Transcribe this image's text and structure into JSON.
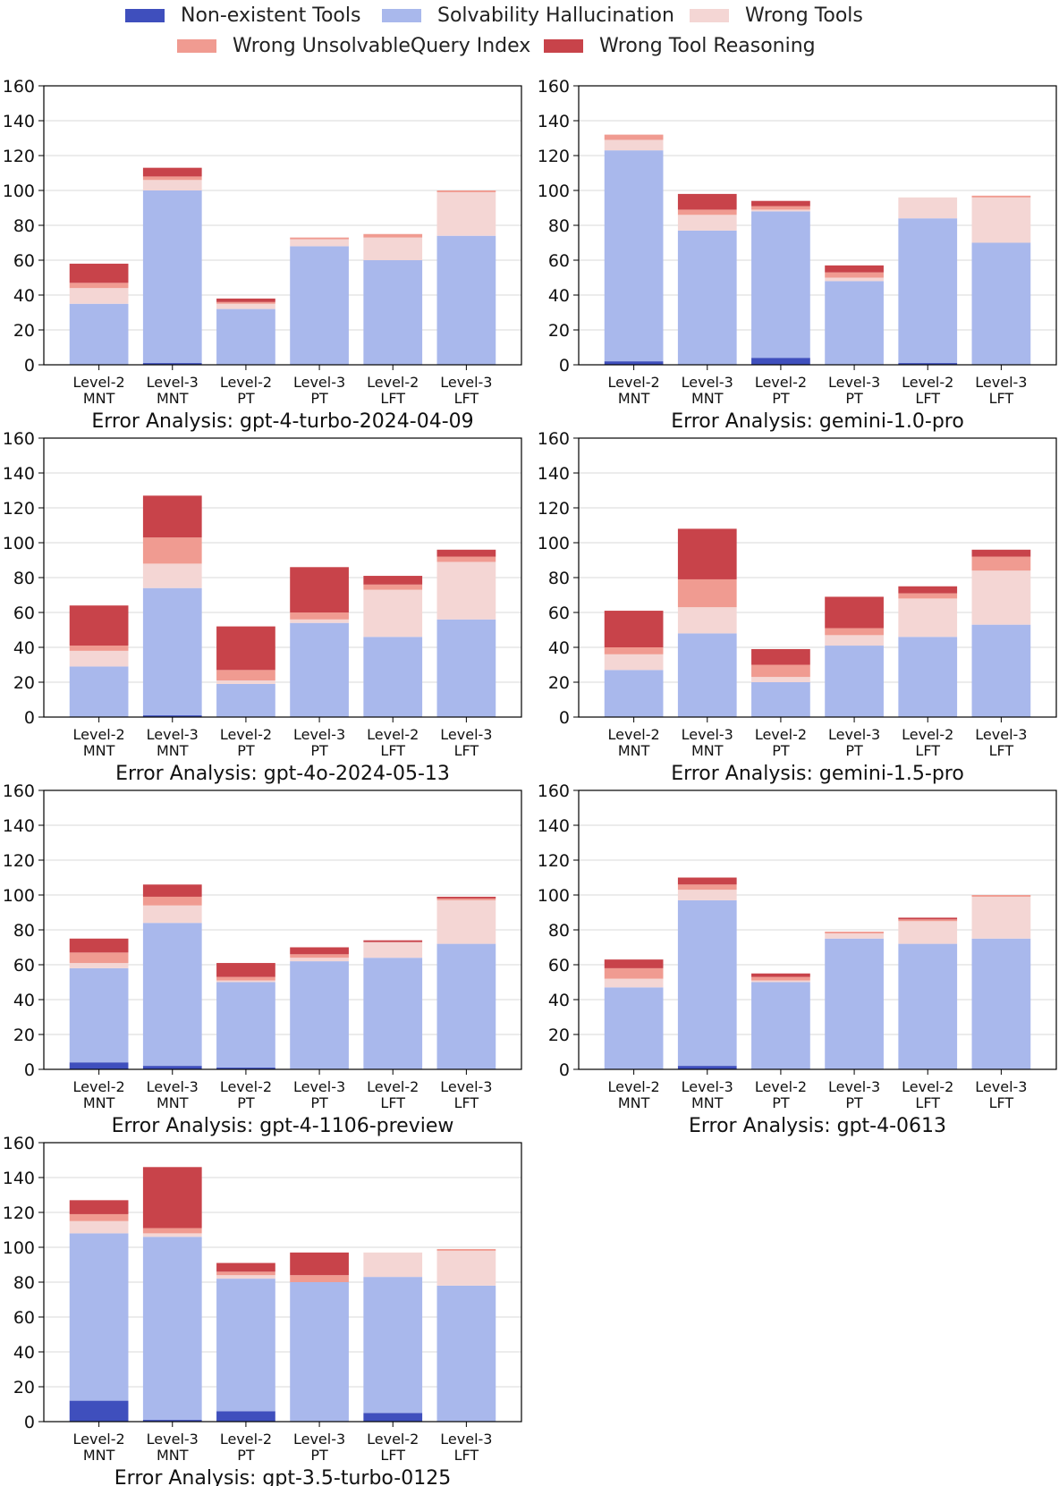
{
  "legend": {
    "items": [
      {
        "label": "Non-existent Tools",
        "color": "#3f4fbd"
      },
      {
        "label": "Solvability Hallucination",
        "color": "#a9b8ec"
      },
      {
        "label": "Wrong Tools",
        "color": "#f4d6d4"
      },
      {
        "label": "Wrong UnsolvableQuery Index",
        "color": "#f09b91"
      },
      {
        "label": "Wrong Tool Reasoning",
        "color": "#c8434a"
      }
    ]
  },
  "chart_data": [
    {
      "type": "bar",
      "stacked": true,
      "title": "Error Analysis: gpt-4-turbo-2024-04-09",
      "categories": [
        "Level-2\nMNT",
        "Level-3\nMNT",
        "Level-2\nPT",
        "Level-3\nPT",
        "Level-2\nLFT",
        "Level-3\nLFT"
      ],
      "ylim": [
        0,
        160
      ],
      "yticks": [
        0,
        20,
        40,
        60,
        80,
        100,
        120,
        140,
        160
      ],
      "grid": true,
      "series": [
        {
          "name": "Non-existent Tools",
          "values": [
            0,
            1,
            0,
            0,
            0,
            0
          ]
        },
        {
          "name": "Solvability Hallucination",
          "values": [
            35,
            99,
            32,
            68,
            60,
            74
          ]
        },
        {
          "name": "Wrong Tools",
          "values": [
            9,
            6,
            3,
            4,
            13,
            25
          ]
        },
        {
          "name": "Wrong UnsolvableQuery Index",
          "values": [
            3,
            2,
            1,
            1,
            2,
            1
          ]
        },
        {
          "name": "Wrong Tool Reasoning",
          "values": [
            11,
            5,
            2,
            0,
            0,
            0
          ]
        }
      ]
    },
    {
      "type": "bar",
      "stacked": true,
      "title": "Error Analysis: gemini-1.0-pro",
      "categories": [
        "Level-2\nMNT",
        "Level-3\nMNT",
        "Level-2\nPT",
        "Level-3\nPT",
        "Level-2\nLFT",
        "Level-3\nLFT"
      ],
      "ylim": [
        0,
        160
      ],
      "yticks": [
        0,
        20,
        40,
        60,
        80,
        100,
        120,
        140,
        160
      ],
      "grid": true,
      "series": [
        {
          "name": "Non-existent Tools",
          "values": [
            2,
            0,
            4,
            0,
            1,
            0
          ]
        },
        {
          "name": "Solvability Hallucination",
          "values": [
            121,
            77,
            84,
            48,
            83,
            70
          ]
        },
        {
          "name": "Wrong Tools",
          "values": [
            6,
            9,
            1,
            2,
            12,
            26
          ]
        },
        {
          "name": "Wrong UnsolvableQuery Index",
          "values": [
            3,
            3,
            2,
            3,
            0,
            1
          ]
        },
        {
          "name": "Wrong Tool Reasoning",
          "values": [
            0,
            9,
            3,
            4,
            0,
            0
          ]
        }
      ]
    },
    {
      "type": "bar",
      "stacked": true,
      "title": "Error Analysis: gpt-4o-2024-05-13",
      "categories": [
        "Level-2\nMNT",
        "Level-3\nMNT",
        "Level-2\nPT",
        "Level-3\nPT",
        "Level-2\nLFT",
        "Level-3\nLFT"
      ],
      "ylim": [
        0,
        160
      ],
      "yticks": [
        0,
        20,
        40,
        60,
        80,
        100,
        120,
        140,
        160
      ],
      "grid": true,
      "series": [
        {
          "name": "Non-existent Tools",
          "values": [
            0,
            1,
            0,
            0,
            0,
            0
          ]
        },
        {
          "name": "Solvability Hallucination",
          "values": [
            29,
            73,
            19,
            54,
            46,
            56
          ]
        },
        {
          "name": "Wrong Tools",
          "values": [
            9,
            14,
            2,
            2,
            27,
            33
          ]
        },
        {
          "name": "Wrong UnsolvableQuery Index",
          "values": [
            3,
            15,
            6,
            4,
            3,
            3
          ]
        },
        {
          "name": "Wrong Tool Reasoning",
          "values": [
            23,
            24,
            25,
            26,
            5,
            4
          ]
        }
      ]
    },
    {
      "type": "bar",
      "stacked": true,
      "title": "Error Analysis: gemini-1.5-pro",
      "categories": [
        "Level-2\nMNT",
        "Level-3\nMNT",
        "Level-2\nPT",
        "Level-3\nPT",
        "Level-2\nLFT",
        "Level-3\nLFT"
      ],
      "ylim": [
        0,
        160
      ],
      "yticks": [
        0,
        20,
        40,
        60,
        80,
        100,
        120,
        140,
        160
      ],
      "grid": true,
      "series": [
        {
          "name": "Non-existent Tools",
          "values": [
            0,
            0,
            0,
            0,
            0,
            0
          ]
        },
        {
          "name": "Solvability Hallucination",
          "values": [
            27,
            48,
            20,
            41,
            46,
            53
          ]
        },
        {
          "name": "Wrong Tools",
          "values": [
            9,
            15,
            3,
            6,
            22,
            31
          ]
        },
        {
          "name": "Wrong UnsolvableQuery Index",
          "values": [
            4,
            16,
            7,
            4,
            3,
            8
          ]
        },
        {
          "name": "Wrong Tool Reasoning",
          "values": [
            21,
            29,
            9,
            18,
            4,
            4
          ]
        }
      ]
    },
    {
      "type": "bar",
      "stacked": true,
      "title": "Error Analysis: gpt-4-1106-preview",
      "categories": [
        "Level-2\nMNT",
        "Level-3\nMNT",
        "Level-2\nPT",
        "Level-3\nPT",
        "Level-2\nLFT",
        "Level-3\nLFT"
      ],
      "ylim": [
        0,
        160
      ],
      "yticks": [
        0,
        20,
        40,
        60,
        80,
        100,
        120,
        140,
        160
      ],
      "grid": true,
      "series": [
        {
          "name": "Non-existent Tools",
          "values": [
            4,
            2,
            1,
            0,
            0,
            0
          ]
        },
        {
          "name": "Solvability Hallucination",
          "values": [
            54,
            82,
            49,
            62,
            64,
            72
          ]
        },
        {
          "name": "Wrong Tools",
          "values": [
            3,
            10,
            1,
            2,
            9,
            25
          ]
        },
        {
          "name": "Wrong UnsolvableQuery Index",
          "values": [
            6,
            5,
            2,
            2,
            0,
            1
          ]
        },
        {
          "name": "Wrong Tool Reasoning",
          "values": [
            8,
            7,
            8,
            4,
            1,
            1
          ]
        }
      ]
    },
    {
      "type": "bar",
      "stacked": true,
      "title": "Error Analysis: gpt-4-0613",
      "categories": [
        "Level-2\nMNT",
        "Level-3\nMNT",
        "Level-2\nPT",
        "Level-3\nPT",
        "Level-2\nLFT",
        "Level-3\nLFT"
      ],
      "ylim": [
        0,
        160
      ],
      "yticks": [
        0,
        20,
        40,
        60,
        80,
        100,
        120,
        140,
        160
      ],
      "grid": true,
      "series": [
        {
          "name": "Non-existent Tools",
          "values": [
            0,
            2,
            0,
            0,
            0,
            0
          ]
        },
        {
          "name": "Solvability Hallucination",
          "values": [
            47,
            95,
            50,
            75,
            72,
            75
          ]
        },
        {
          "name": "Wrong Tools",
          "values": [
            5,
            6,
            1,
            3,
            13,
            24
          ]
        },
        {
          "name": "Wrong UnsolvableQuery Index",
          "values": [
            6,
            3,
            2,
            1,
            1,
            1
          ]
        },
        {
          "name": "Wrong Tool Reasoning",
          "values": [
            5,
            4,
            2,
            0,
            1,
            0
          ]
        }
      ]
    },
    {
      "type": "bar",
      "stacked": true,
      "title": "Error Analysis: gpt-3.5-turbo-0125",
      "categories": [
        "Level-2\nMNT",
        "Level-3\nMNT",
        "Level-2\nPT",
        "Level-3\nPT",
        "Level-2\nLFT",
        "Level-3\nLFT"
      ],
      "ylim": [
        0,
        160
      ],
      "yticks": [
        0,
        20,
        40,
        60,
        80,
        100,
        120,
        140,
        160
      ],
      "grid": true,
      "series": [
        {
          "name": "Non-existent Tools",
          "values": [
            12,
            1,
            6,
            0,
            5,
            0
          ]
        },
        {
          "name": "Solvability Hallucination",
          "values": [
            96,
            105,
            76,
            80,
            78,
            78
          ]
        },
        {
          "name": "Wrong Tools",
          "values": [
            7,
            2,
            2,
            0,
            14,
            20
          ]
        },
        {
          "name": "Wrong UnsolvableQuery Index",
          "values": [
            4,
            3,
            2,
            4,
            0,
            1
          ]
        },
        {
          "name": "Wrong Tool Reasoning",
          "values": [
            8,
            35,
            5,
            13,
            0,
            0
          ]
        }
      ]
    }
  ]
}
